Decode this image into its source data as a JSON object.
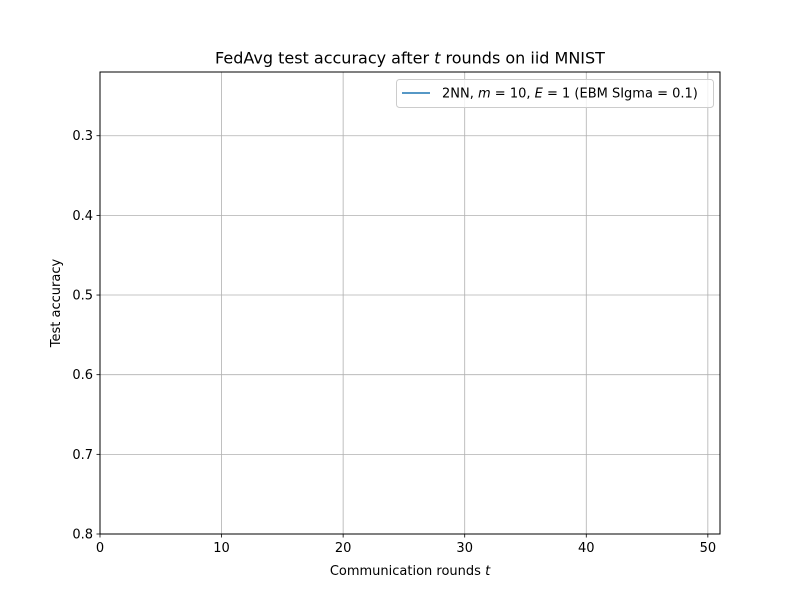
{
  "chart_data": {
    "type": "line",
    "title": "FedAvg test accuracy after t rounds on iid MNIST",
    "xlabel": "Communication rounds t",
    "ylabel": "Test accuracy",
    "xlim": [
      0,
      51
    ],
    "ylim": [
      0.8,
      0.22
    ],
    "y_inverted": true,
    "grid": true,
    "legend_position": "top-right",
    "x_ticks": [
      0,
      10,
      20,
      30,
      40,
      50
    ],
    "x_tick_labels": [
      "0",
      "10",
      "20",
      "30",
      "40",
      "50"
    ],
    "y_ticks": [
      0.3,
      0.4,
      0.5,
      0.6,
      0.7,
      0.8
    ],
    "y_tick_labels": [
      "0.3",
      "0.4",
      "0.5",
      "0.6",
      "0.7",
      "0.8"
    ],
    "series": [
      {
        "name": "2NN, m = 10, E = 1 (EBM SIgma = 0.1)",
        "color": "#1f77b4",
        "x": [],
        "y": []
      }
    ]
  }
}
